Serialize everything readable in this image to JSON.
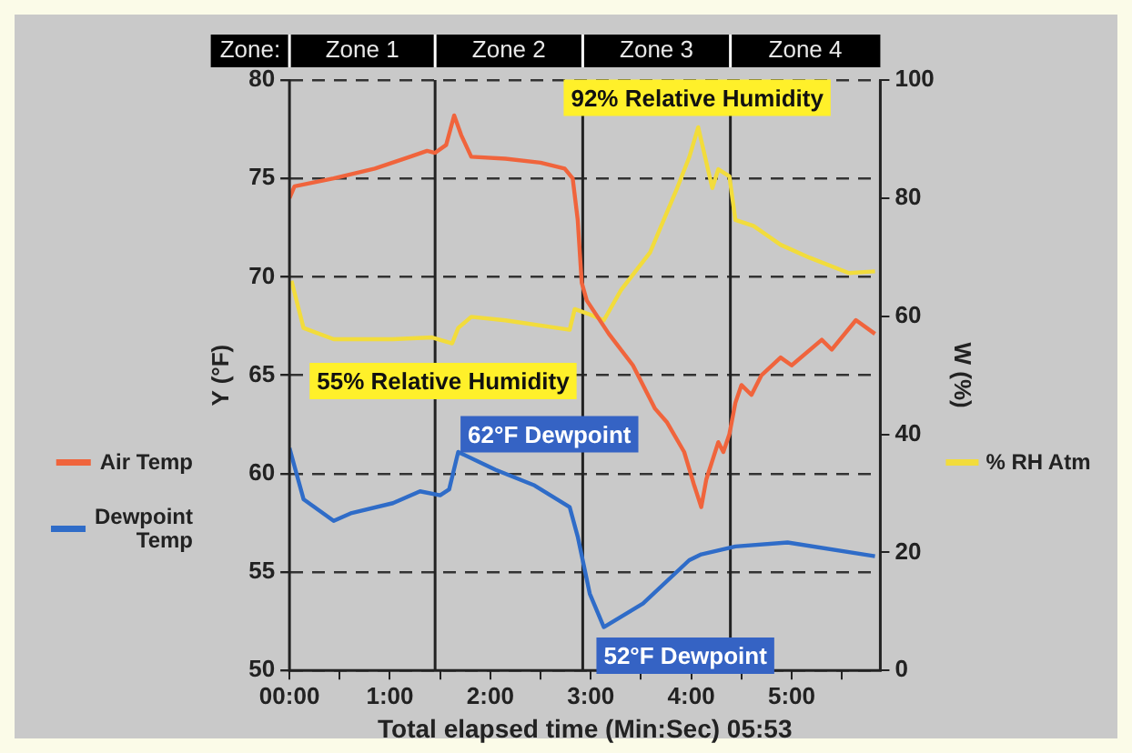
{
  "chart_data": {
    "type": "line",
    "xlabel": "Total elapsed time (Min:Sec) 05:53",
    "ylabel": "Y (°F)",
    "y2label": "W (%)",
    "xlim": [
      0,
      5.883
    ],
    "xticks": [
      {
        "value": 0,
        "label": "00:00"
      },
      {
        "value": 0.5,
        "label": null
      },
      {
        "value": 1,
        "label": "1:00"
      },
      {
        "value": 1.5,
        "label": null
      },
      {
        "value": 2,
        "label": "2:00"
      },
      {
        "value": 2.5,
        "label": null
      },
      {
        "value": 3,
        "label": "3:00"
      },
      {
        "value": 3.5,
        "label": null
      },
      {
        "value": 4,
        "label": "4:00"
      },
      {
        "value": 4.5,
        "label": null
      },
      {
        "value": 5,
        "label": "5:00"
      },
      {
        "value": 5.5,
        "label": null
      }
    ],
    "ylim": [
      50,
      80
    ],
    "yticks": [
      50,
      55,
      60,
      65,
      70,
      75,
      80
    ],
    "y2lim": [
      0,
      100
    ],
    "y2ticks": [
      0,
      20,
      40,
      60,
      80,
      100
    ],
    "grid": "y",
    "legend": "left",
    "marker": "none",
    "line_style": "solid",
    "ref_lines": [
      {
        "axis": "x",
        "value": 1.45,
        "color": "#222222"
      },
      {
        "axis": "x",
        "value": 2.92,
        "color": "#222222"
      },
      {
        "axis": "x",
        "value": 4.39,
        "color": "#222222"
      }
    ],
    "annotations": [
      "Zone:",
      "Zone 1",
      "Zone 2",
      "Zone 3",
      "Zone 4",
      "92% Relative Humidity",
      "55% Relative Humidity",
      "62°F Dewpoint",
      "52°F Dewpoint"
    ],
    "series": [
      {
        "name": "Air Temp",
        "color": "#f0643c",
        "x": [
          0,
          0.05,
          0.44,
          0.85,
          1.2,
          1.37,
          1.45,
          1.56,
          1.64,
          1.71,
          1.81,
          2.15,
          2.5,
          2.74,
          2.82,
          2.87,
          2.91,
          2.96,
          3.18,
          3.42,
          3.64,
          3.76,
          3.93,
          4.03,
          4.1,
          4.15,
          4.27,
          4.32,
          4.38,
          4.44,
          4.5,
          4.6,
          4.7,
          4.89,
          5.0,
          5.3,
          5.4,
          5.64,
          5.83
        ],
        "values": [
          74.0,
          74.6,
          75.0,
          75.5,
          76.1,
          76.4,
          76.3,
          76.7,
          78.2,
          77.2,
          76.1,
          76.0,
          75.8,
          75.5,
          75.0,
          72.9,
          69.7,
          68.8,
          67.1,
          65.5,
          63.3,
          62.6,
          61.1,
          59.4,
          58.3,
          59.7,
          61.6,
          61.1,
          62.0,
          63.6,
          64.5,
          64.0,
          65.0,
          65.9,
          65.5,
          66.8,
          66.3,
          67.8,
          67.1
        ]
      },
      {
        "name": "Dewpoint Temp",
        "color": "#2f6cc8",
        "x": [
          0,
          0.14,
          0.44,
          0.62,
          1.03,
          1.3,
          1.5,
          1.59,
          1.68,
          2.05,
          2.44,
          2.79,
          2.87,
          2.99,
          3.13,
          3.52,
          3.98,
          4.1,
          4.44,
          4.96,
          5.83
        ],
        "values": [
          61.3,
          58.7,
          57.6,
          58.0,
          58.5,
          59.1,
          58.9,
          59.2,
          61.1,
          60.2,
          59.4,
          58.3,
          56.8,
          53.9,
          52.2,
          53.4,
          55.6,
          55.9,
          56.3,
          56.5,
          55.8
        ]
      },
      {
        "name": "% RH Atm",
        "color": "#f2dc3c",
        "axis": "y2",
        "x": [
          0.02,
          0.14,
          0.44,
          1.03,
          1.42,
          1.62,
          1.68,
          1.81,
          2.15,
          2.79,
          2.84,
          2.99,
          3.13,
          3.3,
          3.59,
          3.86,
          3.98,
          4.07,
          4.21,
          4.27,
          4.38,
          4.44,
          4.62,
          4.89,
          5.18,
          5.57,
          5.83
        ],
        "values": [
          66.0,
          58.0,
          56.1,
          56.1,
          56.4,
          55.4,
          58.0,
          59.9,
          59.3,
          57.7,
          61.2,
          60.3,
          59.3,
          64.4,
          70.8,
          81.7,
          86.9,
          92,
          81.7,
          84.9,
          83.7,
          76.3,
          75.3,
          72.1,
          69.9,
          67.3,
          67.6
        ]
      }
    ]
  }
}
